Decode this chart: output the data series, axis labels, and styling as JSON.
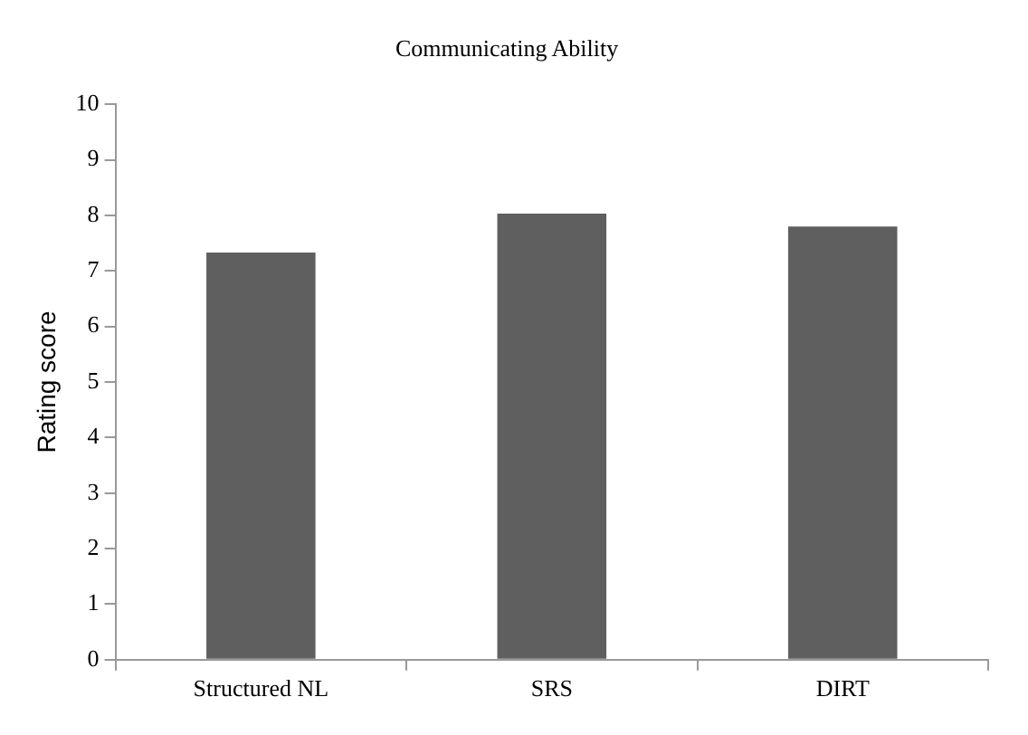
{
  "chart_data": {
    "type": "bar",
    "title": "Communicating Ability",
    "ylabel": "Rating score",
    "categories": [
      "Structured NL",
      "SRS",
      "DIRT"
    ],
    "values": [
      7.33,
      8.03,
      7.8
    ],
    "color": "#5f5f5f",
    "ylim": [
      0,
      10
    ],
    "yticks": [
      0,
      1,
      2,
      3,
      4,
      5,
      6,
      7,
      8,
      9,
      10
    ],
    "grid": false,
    "legend": false
  }
}
